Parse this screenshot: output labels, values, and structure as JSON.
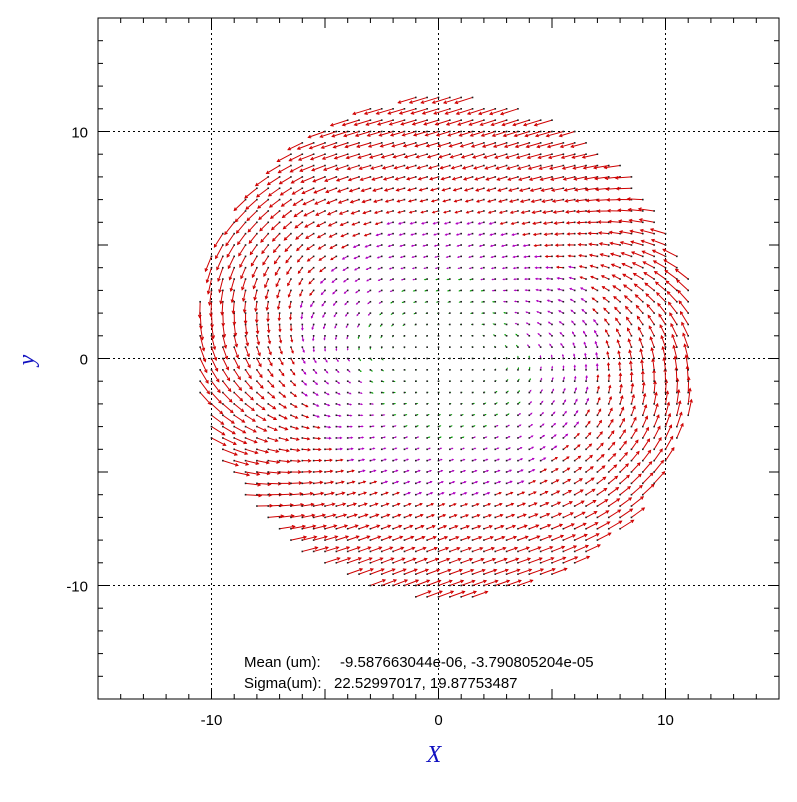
{
  "chart_data": {
    "type": "quiver",
    "xlabel": "X",
    "ylabel": "y",
    "xlim": [
      -15,
      15
    ],
    "ylim": [
      -15,
      15
    ],
    "xticks": [
      -10,
      0,
      10
    ],
    "yticks": [
      10,
      0,
      -10
    ],
    "grid": true,
    "grid_style": "dotted",
    "field_region": {
      "center": [
        0.35,
        0.5
      ],
      "radius": 11.1
    },
    "grid_spacing": 0.5,
    "vector_field_model": "radial-tangential distortion (approximated)",
    "annotations": {
      "mean_label": "Mean (um):",
      "mean_values": "-9.587663044e-06, -3.790805204e-05",
      "sigma_label": "Sigma(um):",
      "sigma_values": "22.52997017, 19.87753487"
    }
  },
  "colors": {
    "vector_large": "#d00000",
    "vector_medium": "#b000c0",
    "vector_small": "#00a000",
    "axis_title": "#1010c0",
    "frame": "#000000",
    "grid": "#000000"
  }
}
